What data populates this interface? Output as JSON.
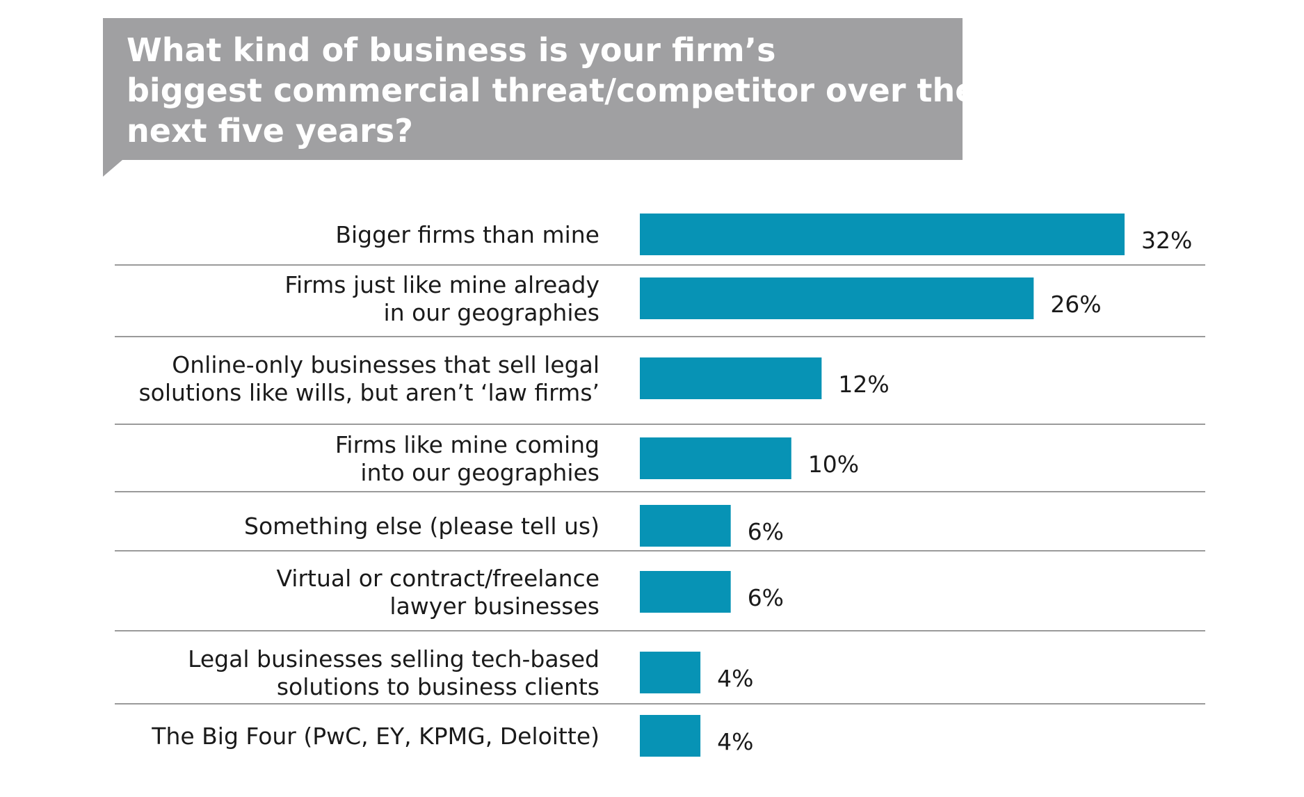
{
  "chart_data": {
    "type": "bar",
    "orientation": "horizontal",
    "title": "What kind of business is your firm’s biggest commercial threat/competitor over the next five years?",
    "categories": [
      "Bigger firms than mine",
      "Firms just like mine already in our geographies",
      "Online-only businesses that sell legal solutions like wills, but aren’t ‘law firms’",
      "Firms like mine coming into our geographies",
      "Something else (please tell us)",
      "Virtual or contract/freelance lawyer businesses",
      "Legal businesses selling tech-based solutions to business clients",
      "The Big Four (PwC, EY, KPMG, Deloitte)"
    ],
    "category_lines": [
      [
        "Bigger firms than mine"
      ],
      [
        "Firms just like mine already",
        "in our geographies"
      ],
      [
        "Online-only businesses that sell legal",
        "solutions like wills, but aren’t ‘law firms’"
      ],
      [
        "Firms like mine coming",
        "into our geographies"
      ],
      [
        "Something else (please tell us)"
      ],
      [
        "Virtual or contract/freelance",
        "lawyer businesses"
      ],
      [
        "Legal businesses selling tech-based",
        "solutions to business clients"
      ],
      [
        "The Big Four (PwC, EY, KPMG, Deloitte)"
      ]
    ],
    "values": [
      32,
      26,
      12,
      10,
      6,
      6,
      4,
      4
    ],
    "value_labels": [
      "32%",
      "26%",
      "12%",
      "10%",
      "6%",
      "6%",
      "4%",
      "4%"
    ],
    "unit": "%",
    "xlim": [
      0,
      32
    ],
    "grid": false,
    "legend": "none",
    "colors": {
      "bar": "#0793b5",
      "title_box": "#a0a0a2",
      "title_text": "#ffffff",
      "divider": "#9a9a9a",
      "text": "#1a1a1a"
    }
  }
}
